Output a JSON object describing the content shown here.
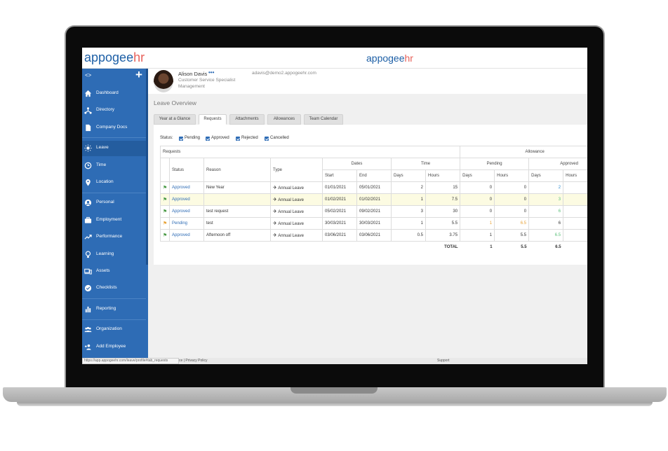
{
  "branding": {
    "logo_part_a": "appogee",
    "logo_part_b": "hr"
  },
  "sidebar": {
    "code_toggle": "<>",
    "add_symbol": "+",
    "items": [
      {
        "label": "Dashboard",
        "icon": "home-icon"
      },
      {
        "label": "Directory",
        "icon": "org-icon"
      },
      {
        "label": "Company Docs",
        "icon": "document-icon"
      },
      {
        "label": "Leave",
        "icon": "sun-icon"
      },
      {
        "label": "Time",
        "icon": "clock-icon"
      },
      {
        "label": "Location",
        "icon": "pin-icon"
      },
      {
        "label": "Personal",
        "icon": "person-icon"
      },
      {
        "label": "Employment",
        "icon": "briefcase-icon"
      },
      {
        "label": "Performance",
        "icon": "trend-icon"
      },
      {
        "label": "Learning",
        "icon": "bulb-icon"
      },
      {
        "label": "Assets",
        "icon": "devices-icon"
      },
      {
        "label": "Checklists",
        "icon": "check-icon"
      },
      {
        "label": "Reporting",
        "icon": "bar-chart-icon"
      },
      {
        "label": "Organization",
        "icon": "people-icon"
      },
      {
        "label": "Add Employee",
        "icon": "add-person-icon"
      }
    ]
  },
  "profile": {
    "name": "Alison Davis",
    "dots": "•••",
    "title": "Customer Service Specialist",
    "department": "Management",
    "email": "adavis@demo2.appogeehr.com"
  },
  "page": {
    "title": "Leave Overview"
  },
  "tabs": [
    {
      "label": "Year at a Glance"
    },
    {
      "label": "Requests"
    },
    {
      "label": "Attachments"
    },
    {
      "label": "Allowances"
    },
    {
      "label": "Team Calendar"
    }
  ],
  "status_filter": {
    "label": "Status:",
    "options": [
      "Pending",
      "Approved",
      "Rejected",
      "Cancelled"
    ]
  },
  "table": {
    "group_requests": "Requests",
    "group_allowance": "Allowance",
    "group_dates": "Dates",
    "group_time": "Time",
    "group_pending": "Pending",
    "group_approved": "Approved",
    "col_status": "Status",
    "col_reason": "Reason",
    "col_type": "Type",
    "col_start": "Start",
    "col_end": "End",
    "col_days": "Days",
    "col_hours": "Hours",
    "rows": [
      {
        "status": "Approved",
        "reason": "New Year",
        "type": "Annual Leave",
        "start": "01/01/2021",
        "end": "05/01/2021",
        "days": "2",
        "hours": "15",
        "p_days": "0",
        "p_hours": "0",
        "a_days": "2"
      },
      {
        "status": "Approved",
        "reason": "",
        "type": "Annual Leave",
        "start": "01/02/2021",
        "end": "01/02/2021",
        "days": "1",
        "hours": "7.5",
        "p_days": "0",
        "p_hours": "0",
        "a_days": "3"
      },
      {
        "status": "Approved",
        "reason": "test request",
        "type": "Annual Leave",
        "start": "05/02/2021",
        "end": "09/02/2021",
        "days": "3",
        "hours": "30",
        "p_days": "0",
        "p_hours": "0",
        "a_days": "6"
      },
      {
        "status": "Pending",
        "reason": "test",
        "type": "Annual Leave",
        "start": "30/03/2021",
        "end": "30/03/2021",
        "days": "1",
        "hours": "5.5",
        "p_days": "1",
        "p_hours": "6.5",
        "a_days": "6"
      },
      {
        "status": "Approved",
        "reason": "Afternoon off",
        "type": "Annual Leave",
        "start": "03/06/2021",
        "end": "03/06/2021",
        "days": "0.5",
        "hours": "3.75",
        "p_days": "1",
        "p_hours": "5.5",
        "a_days": "6.5",
        "a_hours": "5"
      }
    ],
    "total_label": "TOTAL",
    "total_p_days": "1",
    "total_p_hours": "5.5",
    "total_a_days": "6.5",
    "total_a_hours": "5("
  },
  "footer": {
    "url": "https://app.appogeehr.com/leave/profile#tab_requests",
    "privacy": "ce | Privacy Policy",
    "support": "Support"
  },
  "colors": {
    "brand_blue": "#2e6cb5",
    "brand_red": "#e8615a",
    "pending": "#e8a43a",
    "approved_green": "#5cc07a"
  }
}
